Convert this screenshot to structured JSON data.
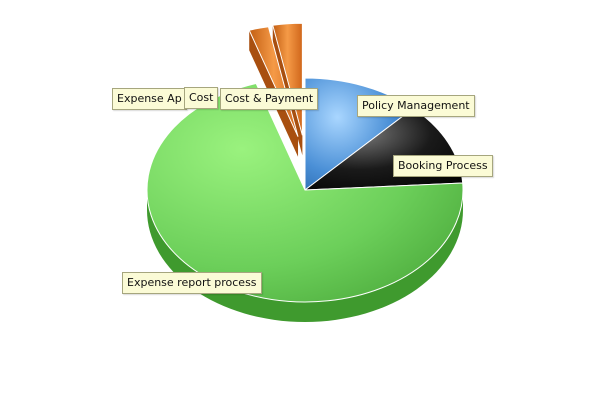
{
  "chart_data": {
    "type": "pie",
    "title": "",
    "style": "3d-tilted",
    "slices": [
      {
        "label": "Policy Management",
        "value": 12,
        "color": "#4a8fd6"
      },
      {
        "label": "Booking Process",
        "value": 12,
        "color": "#1a1a1a"
      },
      {
        "label": "Expense report process",
        "value": 71,
        "color": "#6ccf5a"
      },
      {
        "label": "Expense Approval",
        "value": 2,
        "color": "#e07a2a",
        "exploded": true
      },
      {
        "label": "Cost & Payment",
        "value": 3,
        "color": "#e07a2a",
        "exploded": true
      }
    ],
    "labels": {
      "policy": "Policy Management",
      "booking": "Booking Process",
      "approval": "Expense Ap",
      "cost": "Cost & Payment",
      "cost_fragment": "Cost",
      "expense": "Expense report process"
    }
  }
}
